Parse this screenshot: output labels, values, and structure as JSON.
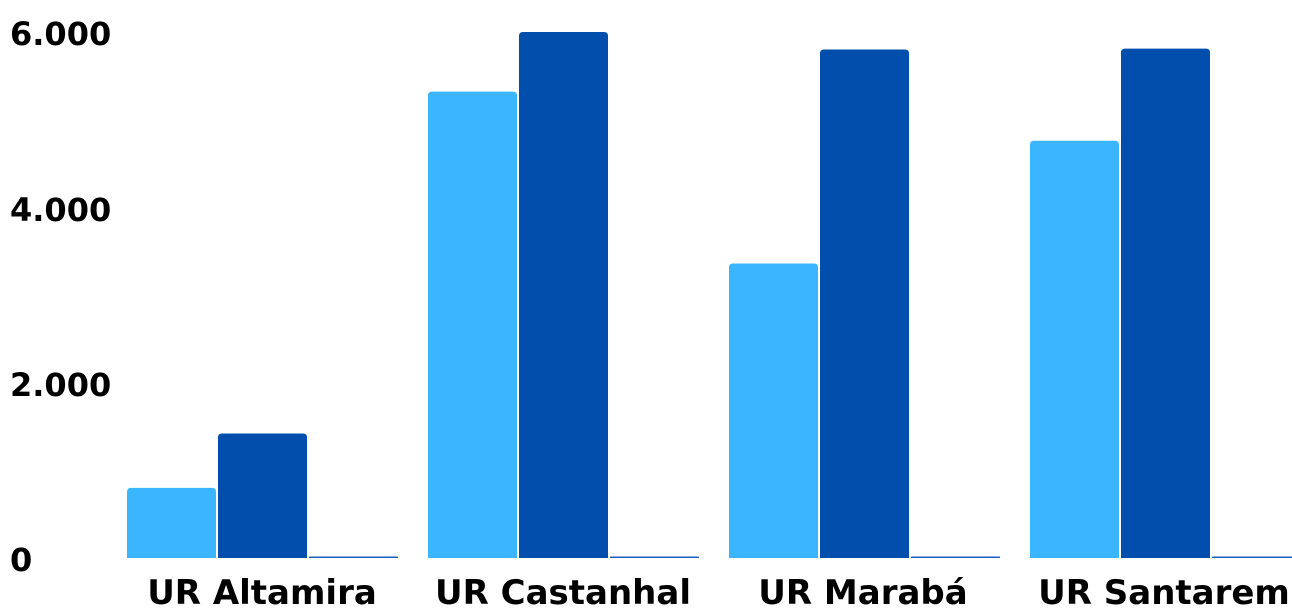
{
  "chart_data": {
    "type": "bar",
    "title": "",
    "xlabel": "",
    "ylabel": "",
    "ylim": [
      0,
      6000
    ],
    "yticks": [
      0,
      2000,
      4000,
      6000
    ],
    "ytick_labels": [
      "0",
      "2.000",
      "4.000",
      "6.000"
    ],
    "grid": false,
    "legend": "none",
    "categories": [
      "UR Altamira",
      "UR Castanhal",
      "UR Marabá",
      "UR Santarem"
    ],
    "series": [
      {
        "values": [
          800,
          5320,
          3360,
          4760
        ],
        "color": "#3bb5fd"
      },
      {
        "values": [
          1420,
          6000,
          5800,
          5810
        ],
        "color": "#024ead"
      },
      {
        "values": [
          0,
          0,
          0,
          0
        ],
        "color": "#1b5fc0"
      }
    ]
  }
}
